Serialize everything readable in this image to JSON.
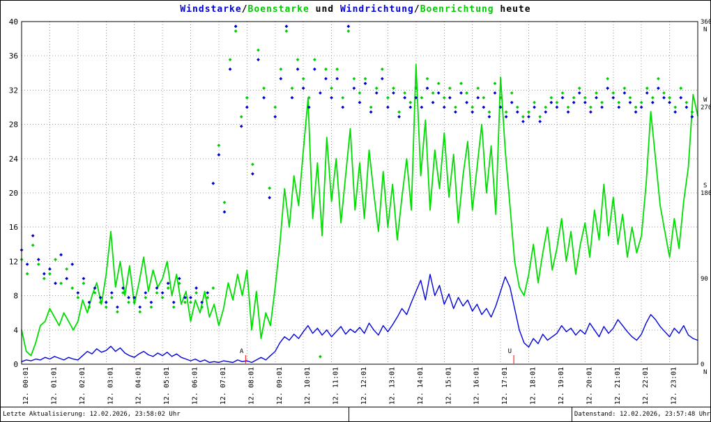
{
  "title": {
    "parts": [
      {
        "text": "Windstarke",
        "color": "#0000dd"
      },
      {
        "text": "/",
        "color": "#000000"
      },
      {
        "text": "Boenstarke",
        "color": "#00cc00"
      },
      {
        "text": " und ",
        "color": "#000000"
      },
      {
        "text": "Windrichtung",
        "color": "#0000dd"
      },
      {
        "text": "/",
        "color": "#000000"
      },
      {
        "text": "Boenrichtung",
        "color": "#00cc00"
      },
      {
        "text": " heute",
        "color": "#000000"
      }
    ]
  },
  "footer": {
    "left": "Letzte Aktualisierung: 12.02.2026, 23:58:02 Uhr",
    "right": "Datenstand: 12.02.2026, 23:57:48 Uhr"
  },
  "chart_data": {
    "type": "line+scatter",
    "title": "Windstarke/Boenstarke und Windrichtung/Boenrichtung heute",
    "x_axis": {
      "hours": 24,
      "labels": [
        "12. 00:01",
        "12. 01:01",
        "12. 02:01",
        "12. 03:01",
        "12. 04:01",
        "12. 05:01",
        "12. 06:01",
        "12. 07:01",
        "12. 08:01",
        "12. 09:01",
        "12. 10:01",
        "12. 11:01",
        "12. 12:01",
        "12. 13:01",
        "12. 14:01",
        "12. 15:01",
        "12. 16:01",
        "12. 17:01",
        "12. 18:01",
        "12. 19:01",
        "12. 20:01",
        "12. 21:01",
        "12. 22:01",
        "12. 23:01"
      ]
    },
    "left_axis": {
      "min": 0,
      "max": 40,
      "step": 4,
      "ticks": [
        40,
        36,
        32,
        28,
        24,
        20,
        16,
        12,
        8,
        4,
        0
      ]
    },
    "right_axis": {
      "min": 0,
      "max": 360,
      "ticks": [
        {
          "value": 360,
          "compass": "N",
          "compass_below": true
        },
        {
          "value": 270,
          "compass": "W",
          "compass_below": false
        },
        {
          "value": 180,
          "compass": "S",
          "compass_below": false
        },
        {
          "value": 90,
          "compass": "",
          "compass_below": false
        },
        {
          "value": 0,
          "compass": "N",
          "compass_below": true
        }
      ]
    },
    "colors": {
      "grid": "#999999",
      "border": "#000000",
      "background": "#ffffff",
      "marker": "#ff0000"
    },
    "markers": [
      {
        "label": "A",
        "hour": 7.95
      },
      {
        "label": "U",
        "hour": 17.47
      }
    ],
    "series": [
      {
        "name": "Boenstarke",
        "type": "line",
        "color": "#00dd00",
        "width": 1.8,
        "axis": "left",
        "step_minutes": 10,
        "values": [
          4.0,
          1.5,
          1.0,
          2.5,
          4.5,
          5.0,
          6.5,
          5.5,
          4.5,
          6.0,
          5.0,
          4.0,
          5.0,
          7.5,
          6.0,
          8.0,
          9.5,
          7.0,
          10.5,
          15.5,
          9.0,
          12.0,
          8.0,
          11.5,
          7.0,
          9.5,
          12.5,
          8.5,
          11.0,
          9.0,
          10.0,
          12.0,
          8.0,
          10.5,
          7.0,
          8.5,
          5.0,
          7.5,
          6.0,
          8.5,
          5.5,
          7.0,
          4.5,
          6.5,
          9.5,
          7.5,
          10.5,
          8.0,
          11.0,
          4.0,
          8.5,
          3.0,
          6.0,
          4.5,
          9.0,
          14.0,
          20.5,
          16.0,
          22.0,
          18.5,
          25.0,
          31.0,
          17.0,
          23.5,
          15.0,
          26.5,
          19.0,
          24.0,
          16.5,
          22.0,
          27.5,
          18.0,
          23.5,
          17.0,
          25.0,
          20.0,
          15.5,
          22.5,
          16.0,
          21.0,
          14.5,
          19.5,
          24.0,
          18.0,
          35.0,
          22.0,
          28.5,
          18.0,
          25.0,
          20.5,
          27.0,
          19.5,
          24.5,
          16.5,
          22.0,
          26.0,
          18.0,
          23.0,
          28.0,
          20.0,
          25.5,
          17.5,
          33.5,
          25.0,
          18.5,
          12.0,
          9.0,
          8.0,
          10.5,
          14.0,
          9.5,
          13.0,
          16.0,
          11.0,
          13.5,
          17.0,
          12.0,
          15.5,
          10.5,
          14.0,
          16.5,
          12.5,
          18.0,
          14.5,
          21.0,
          15.0,
          19.5,
          14.0,
          17.5,
          12.5,
          16.0,
          13.0,
          15.0,
          21.0,
          29.5,
          24.0,
          18.5,
          15.5,
          12.5,
          17.0,
          13.5,
          19.0,
          23.0,
          31.5,
          29.0
        ]
      },
      {
        "name": "Windstarke",
        "type": "line",
        "color": "#0000dd",
        "width": 1.4,
        "axis": "left",
        "step_minutes": 10,
        "values": [
          0.3,
          0.5,
          0.4,
          0.6,
          0.5,
          0.8,
          0.6,
          0.9,
          0.7,
          0.5,
          0.8,
          0.6,
          0.5,
          1.0,
          1.5,
          1.2,
          1.8,
          1.4,
          1.6,
          2.1,
          1.5,
          1.9,
          1.3,
          1.0,
          0.8,
          1.2,
          1.5,
          1.1,
          0.9,
          1.3,
          1.0,
          1.4,
          0.9,
          1.2,
          0.8,
          0.6,
          0.4,
          0.6,
          0.3,
          0.5,
          0.2,
          0.3,
          0.2,
          0.4,
          0.3,
          0.2,
          0.5,
          0.3,
          0.4,
          0.2,
          0.5,
          0.8,
          0.5,
          1.0,
          1.5,
          2.5,
          3.2,
          2.8,
          3.5,
          3.0,
          3.8,
          4.5,
          3.6,
          4.2,
          3.4,
          4.0,
          3.2,
          3.8,
          4.4,
          3.5,
          4.1,
          3.7,
          4.3,
          3.6,
          4.8,
          4.0,
          3.4,
          4.5,
          3.8,
          4.6,
          5.5,
          6.5,
          5.8,
          7.2,
          8.5,
          9.8,
          7.5,
          10.5,
          8.0,
          9.2,
          7.0,
          8.2,
          6.5,
          7.8,
          6.8,
          7.5,
          6.2,
          7.0,
          5.8,
          6.5,
          5.5,
          6.8,
          8.5,
          10.2,
          9.0,
          6.5,
          4.0,
          2.5,
          2.0,
          3.0,
          2.4,
          3.5,
          2.8,
          3.2,
          3.6,
          4.5,
          3.8,
          4.2,
          3.4,
          4.0,
          3.5,
          4.8,
          4.0,
          3.2,
          4.4,
          3.6,
          4.2,
          5.2,
          4.5,
          3.8,
          3.2,
          2.8,
          3.5,
          4.8,
          5.8,
          5.2,
          4.4,
          3.8,
          3.2,
          4.2,
          3.6,
          4.5,
          3.4,
          3.0,
          2.8
        ]
      },
      {
        "name": "Boenrichtung",
        "type": "scatter",
        "color": "#00cc00",
        "axis": "right",
        "step_minutes": 12,
        "values": [
          110,
          95,
          125,
          105,
          90,
          95,
          110,
          85,
          100,
          80,
          70,
          85,
          60,
          75,
          65,
          60,
          70,
          55,
          75,
          65,
          65,
          55,
          70,
          60,
          75,
          70,
          80,
          60,
          85,
          65,
          65,
          75,
          60,
          70,
          80,
          230,
          170,
          320,
          350,
          260,
          280,
          210,
          330,
          290,
          185,
          270,
          310,
          350,
          290,
          320,
          300,
          280,
          320,
          8,
          310,
          290,
          310,
          280,
          350,
          300,
          285,
          300,
          270,
          290,
          310,
          280,
          290,
          265,
          285,
          275,
          290,
          280,
          300,
          285,
          295,
          280,
          290,
          270,
          295,
          285,
          270,
          290,
          280,
          265,
          295,
          280,
          265,
          285,
          270,
          260,
          265,
          275,
          260,
          270,
          280,
          275,
          285,
          270,
          280,
          290,
          280,
          270,
          285,
          275,
          300,
          285,
          275,
          290,
          280,
          270,
          275,
          290,
          280,
          300,
          285,
          280,
          270,
          290,
          275,
          265
        ]
      },
      {
        "name": "Windrichtung",
        "type": "scatter",
        "color": "#0000cc",
        "axis": "right",
        "step_minutes": 12,
        "values": [
          120,
          105,
          135,
          110,
          95,
          100,
          85,
          115,
          90,
          105,
          75,
          90,
          65,
          80,
          70,
          65,
          75,
          60,
          80,
          70,
          70,
          60,
          75,
          65,
          80,
          75,
          85,
          65,
          90,
          70,
          70,
          80,
          65,
          75,
          190,
          220,
          160,
          310,
          355,
          250,
          270,
          200,
          320,
          280,
          175,
          260,
          300,
          355,
          280,
          310,
          290,
          270,
          310,
          285,
          300,
          280,
          300,
          270,
          355,
          290,
          275,
          295,
          265,
          285,
          300,
          270,
          285,
          260,
          280,
          270,
          280,
          270,
          290,
          275,
          285,
          270,
          280,
          265,
          285,
          275,
          265,
          280,
          270,
          260,
          285,
          270,
          260,
          275,
          265,
          255,
          260,
          270,
          255,
          265,
          275,
          270,
          280,
          265,
          275,
          285,
          275,
          265,
          280,
          270,
          290,
          280,
          270,
          285,
          275,
          265,
          270,
          285,
          275,
          290,
          280,
          275,
          265,
          280,
          270,
          260
        ]
      }
    ]
  }
}
